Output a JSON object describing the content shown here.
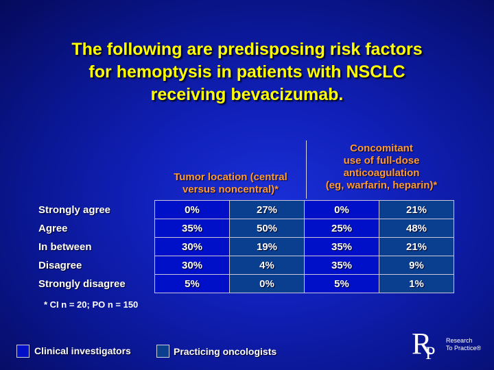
{
  "title": {
    "line1": "The following are predisposing risk factors",
    "line2": "for hemoptysis in patients with NSCLC",
    "line3": "receiving bevacizumab."
  },
  "columns": {
    "tumor_location": {
      "line1": "Tumor location (central",
      "line2": "versus noncentral)*"
    },
    "anticoagulation": {
      "line1": "Concomitant",
      "line2": "use of full-dose",
      "line3": "anticoagulation",
      "line4": "(eg, warfarin, heparin)*"
    }
  },
  "rows": [
    {
      "label": "Strongly agree",
      "tumor_ci": "0%",
      "tumor_po": "27%",
      "anticoag_ci": "0%",
      "anticoag_po": "21%"
    },
    {
      "label": "Agree",
      "tumor_ci": "35%",
      "tumor_po": "50%",
      "anticoag_ci": "25%",
      "anticoag_po": "48%"
    },
    {
      "label": "In between",
      "tumor_ci": "30%",
      "tumor_po": "19%",
      "anticoag_ci": "35%",
      "anticoag_po": "21%"
    },
    {
      "label": "Disagree",
      "tumor_ci": "30%",
      "tumor_po": "4%",
      "anticoag_ci": "35%",
      "anticoag_po": "9%"
    },
    {
      "label": "Strongly disagree",
      "tumor_ci": "5%",
      "tumor_po": "0%",
      "anticoag_ci": "5%",
      "anticoag_po": "1%"
    }
  ],
  "footnote": "* CI n = 20; PO n = 150",
  "legend": {
    "clinical": "Clinical investigators",
    "practicing": "Practicing oncologists"
  },
  "logo": {
    "letter_r": "R",
    "letter_p": "P",
    "line1": "Research",
    "line2": "To Practice®"
  },
  "colors": {
    "title": "#ffff00",
    "column_header": "#ff9a2e",
    "clinical_fill": "#0010c8",
    "practicing_fill": "#0a3e8e"
  }
}
